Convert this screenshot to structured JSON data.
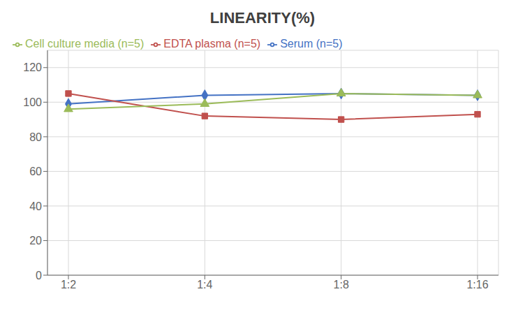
{
  "chart_data": {
    "type": "line",
    "title": "LINEARITY(%)",
    "categories": [
      "1:2",
      "1:4",
      "1:8",
      "1:16"
    ],
    "series": [
      {
        "name": "Serum (n=5)",
        "color": "#4472C4",
        "marker": "diamond",
        "values": [
          99,
          104,
          105,
          104
        ]
      },
      {
        "name": "EDTA plasma (n=5)",
        "color": "#C0504D",
        "marker": "square",
        "values": [
          105,
          92,
          90,
          93
        ]
      },
      {
        "name": "Cell culture media (n=5)",
        "color": "#9BBB59",
        "marker": "triangle",
        "values": [
          96,
          99,
          105,
          104
        ]
      }
    ],
    "ylim": [
      0,
      130
    ],
    "yticks": [
      0,
      20,
      40,
      60,
      80,
      100,
      120
    ],
    "grid": true,
    "legend": "top left"
  }
}
